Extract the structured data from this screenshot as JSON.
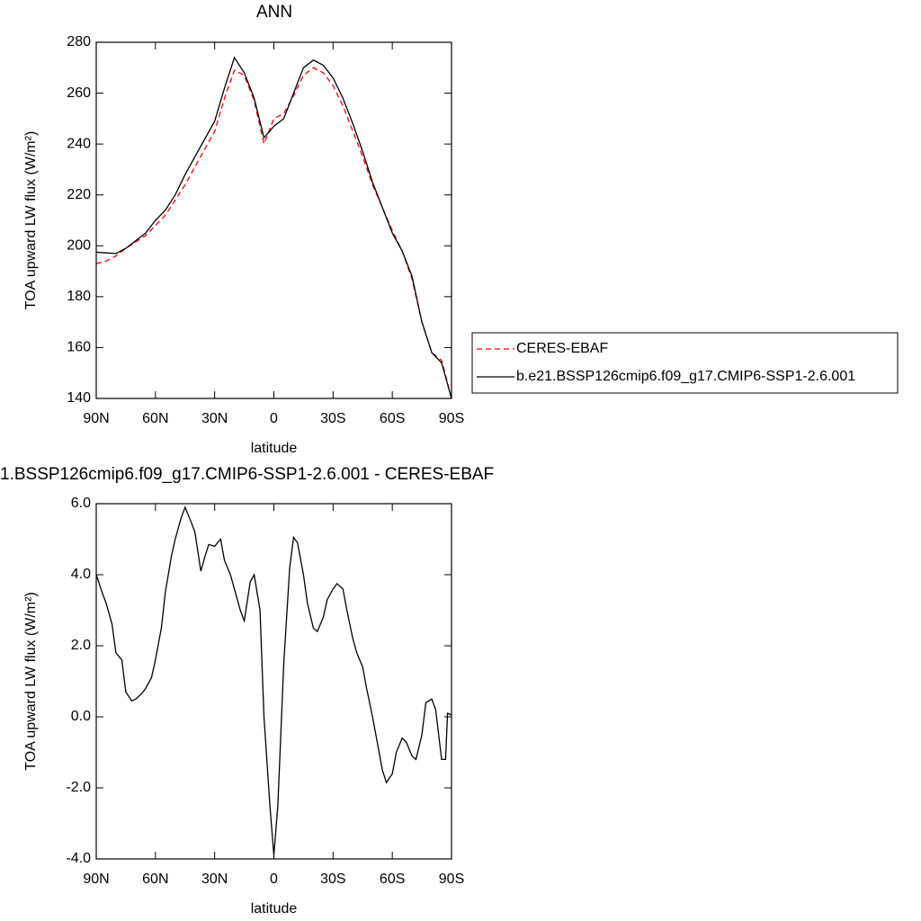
{
  "chart_data": [
    {
      "type": "line",
      "title": "ANN",
      "xlabel": "latitude",
      "ylabel": "TOA upward LW flux (W/m²)",
      "x": [
        90,
        85,
        80,
        75,
        70,
        65,
        60,
        55,
        50,
        45,
        40,
        35,
        30,
        25,
        20,
        15,
        10,
        5,
        0,
        -5,
        -10,
        -15,
        -20,
        -25,
        -30,
        -35,
        -40,
        -45,
        -50,
        -55,
        -60,
        -65,
        -70,
        -75,
        -80,
        -85,
        -90
      ],
      "series": [
        {
          "name": "CERES-EBAF",
          "color": "#ff0000",
          "dash": true,
          "values": [
            193,
            194,
            196,
            199,
            201.5,
            204,
            208,
            212,
            218,
            224,
            231,
            238,
            245,
            258,
            269,
            267,
            257,
            240,
            250,
            252,
            259,
            267,
            270,
            268,
            263,
            255,
            245,
            235,
            224,
            215,
            206,
            198,
            187,
            170,
            158,
            155,
            140
          ]
        },
        {
          "name": "b.e21.BSSP126cmip6.f09_g17.CMIP6-SSP1-2.6.001",
          "color": "#000000",
          "dash": false,
          "values": [
            197.5,
            197.2,
            197,
            199,
            202,
            205,
            210,
            214,
            220,
            228,
            235,
            242,
            249,
            262,
            274,
            268,
            258,
            242.5,
            247,
            250,
            260,
            270,
            273,
            271,
            266,
            258,
            248,
            237,
            225,
            215,
            205,
            198,
            188,
            170,
            158,
            154,
            140
          ]
        }
      ],
      "xlim": [
        90,
        -90
      ],
      "xticks": [
        {
          "value": 90,
          "label": "90N"
        },
        {
          "value": 60,
          "label": "60N"
        },
        {
          "value": 30,
          "label": "30N"
        },
        0,
        {
          "value": -30,
          "label": "30S"
        },
        {
          "value": -60,
          "label": "60S"
        },
        {
          "value": -90,
          "label": "90S"
        }
      ],
      "ylim": [
        140,
        280
      ],
      "yticks": [
        140,
        160,
        180,
        200,
        220,
        240,
        260,
        280
      ],
      "legend": "right"
    },
    {
      "type": "line",
      "title": "1.BSSP126cmip6.f09_g17.CMIP6-SSP1-2.6.001 - CERES-EBAF",
      "xlabel": "latitude",
      "ylabel": "TOA upward LW flux (W/m²)",
      "x": [
        90,
        87,
        85,
        82,
        80,
        77,
        75,
        72,
        70,
        67,
        65,
        62,
        60,
        57,
        55,
        52,
        50,
        47,
        45,
        42,
        40,
        37,
        35,
        33,
        30,
        27,
        25,
        22,
        20,
        17,
        15,
        12,
        10,
        7,
        5,
        2,
        0,
        -2,
        -5,
        -8,
        -10,
        -12,
        -15,
        -17,
        -20,
        -22,
        -25,
        -27,
        -30,
        -32,
        -35,
        -37,
        -40,
        -42,
        -45,
        -47,
        -50,
        -52,
        -55,
        -57,
        -60,
        -62,
        -65,
        -67,
        -70,
        -72,
        -75,
        -77,
        -80,
        -82,
        -85,
        -87,
        -88,
        -90
      ],
      "series": [
        {
          "color": "#000000",
          "values": [
            4.0,
            3.5,
            3.2,
            2.6,
            1.8,
            1.6,
            0.7,
            0.45,
            0.5,
            0.65,
            0.8,
            1.1,
            1.6,
            2.5,
            3.5,
            4.5,
            5.0,
            5.6,
            5.9,
            5.5,
            5.2,
            4.1,
            4.5,
            4.85,
            4.8,
            5.0,
            4.4,
            4.0,
            3.6,
            3.0,
            2.7,
            3.8,
            4.0,
            3.0,
            0.0,
            -2.5,
            -3.9,
            -2.5,
            1.5,
            4.2,
            5.05,
            4.9,
            4.0,
            3.2,
            2.5,
            2.4,
            2.8,
            3.3,
            3.6,
            3.75,
            3.6,
            3.0,
            2.2,
            1.8,
            1.4,
            0.8,
            0.0,
            -0.6,
            -1.5,
            -1.85,
            -1.6,
            -1.0,
            -0.6,
            -0.7,
            -1.1,
            -1.2,
            -0.5,
            0.4,
            0.5,
            0.2,
            -1.2,
            -1.2,
            0.1,
            0.05
          ]
        }
      ],
      "xlim": [
        90,
        -90
      ],
      "xticks": [
        {
          "value": 90,
          "label": "90N"
        },
        {
          "value": 60,
          "label": "60N"
        },
        {
          "value": 30,
          "label": "30N"
        },
        0,
        {
          "value": -30,
          "label": "30S"
        },
        {
          "value": -60,
          "label": "60S"
        },
        {
          "value": -90,
          "label": "90S"
        }
      ],
      "ylim": [
        -4,
        6
      ],
      "yticks": [
        {
          "value": -4,
          "label": "-4.0"
        },
        {
          "value": -2,
          "label": "-2.0"
        },
        {
          "value": 0,
          "label": "0.0"
        },
        {
          "value": 2,
          "label": "2.0"
        },
        {
          "value": 4,
          "label": "4.0"
        },
        {
          "value": 6,
          "label": "6.0"
        }
      ]
    }
  ]
}
